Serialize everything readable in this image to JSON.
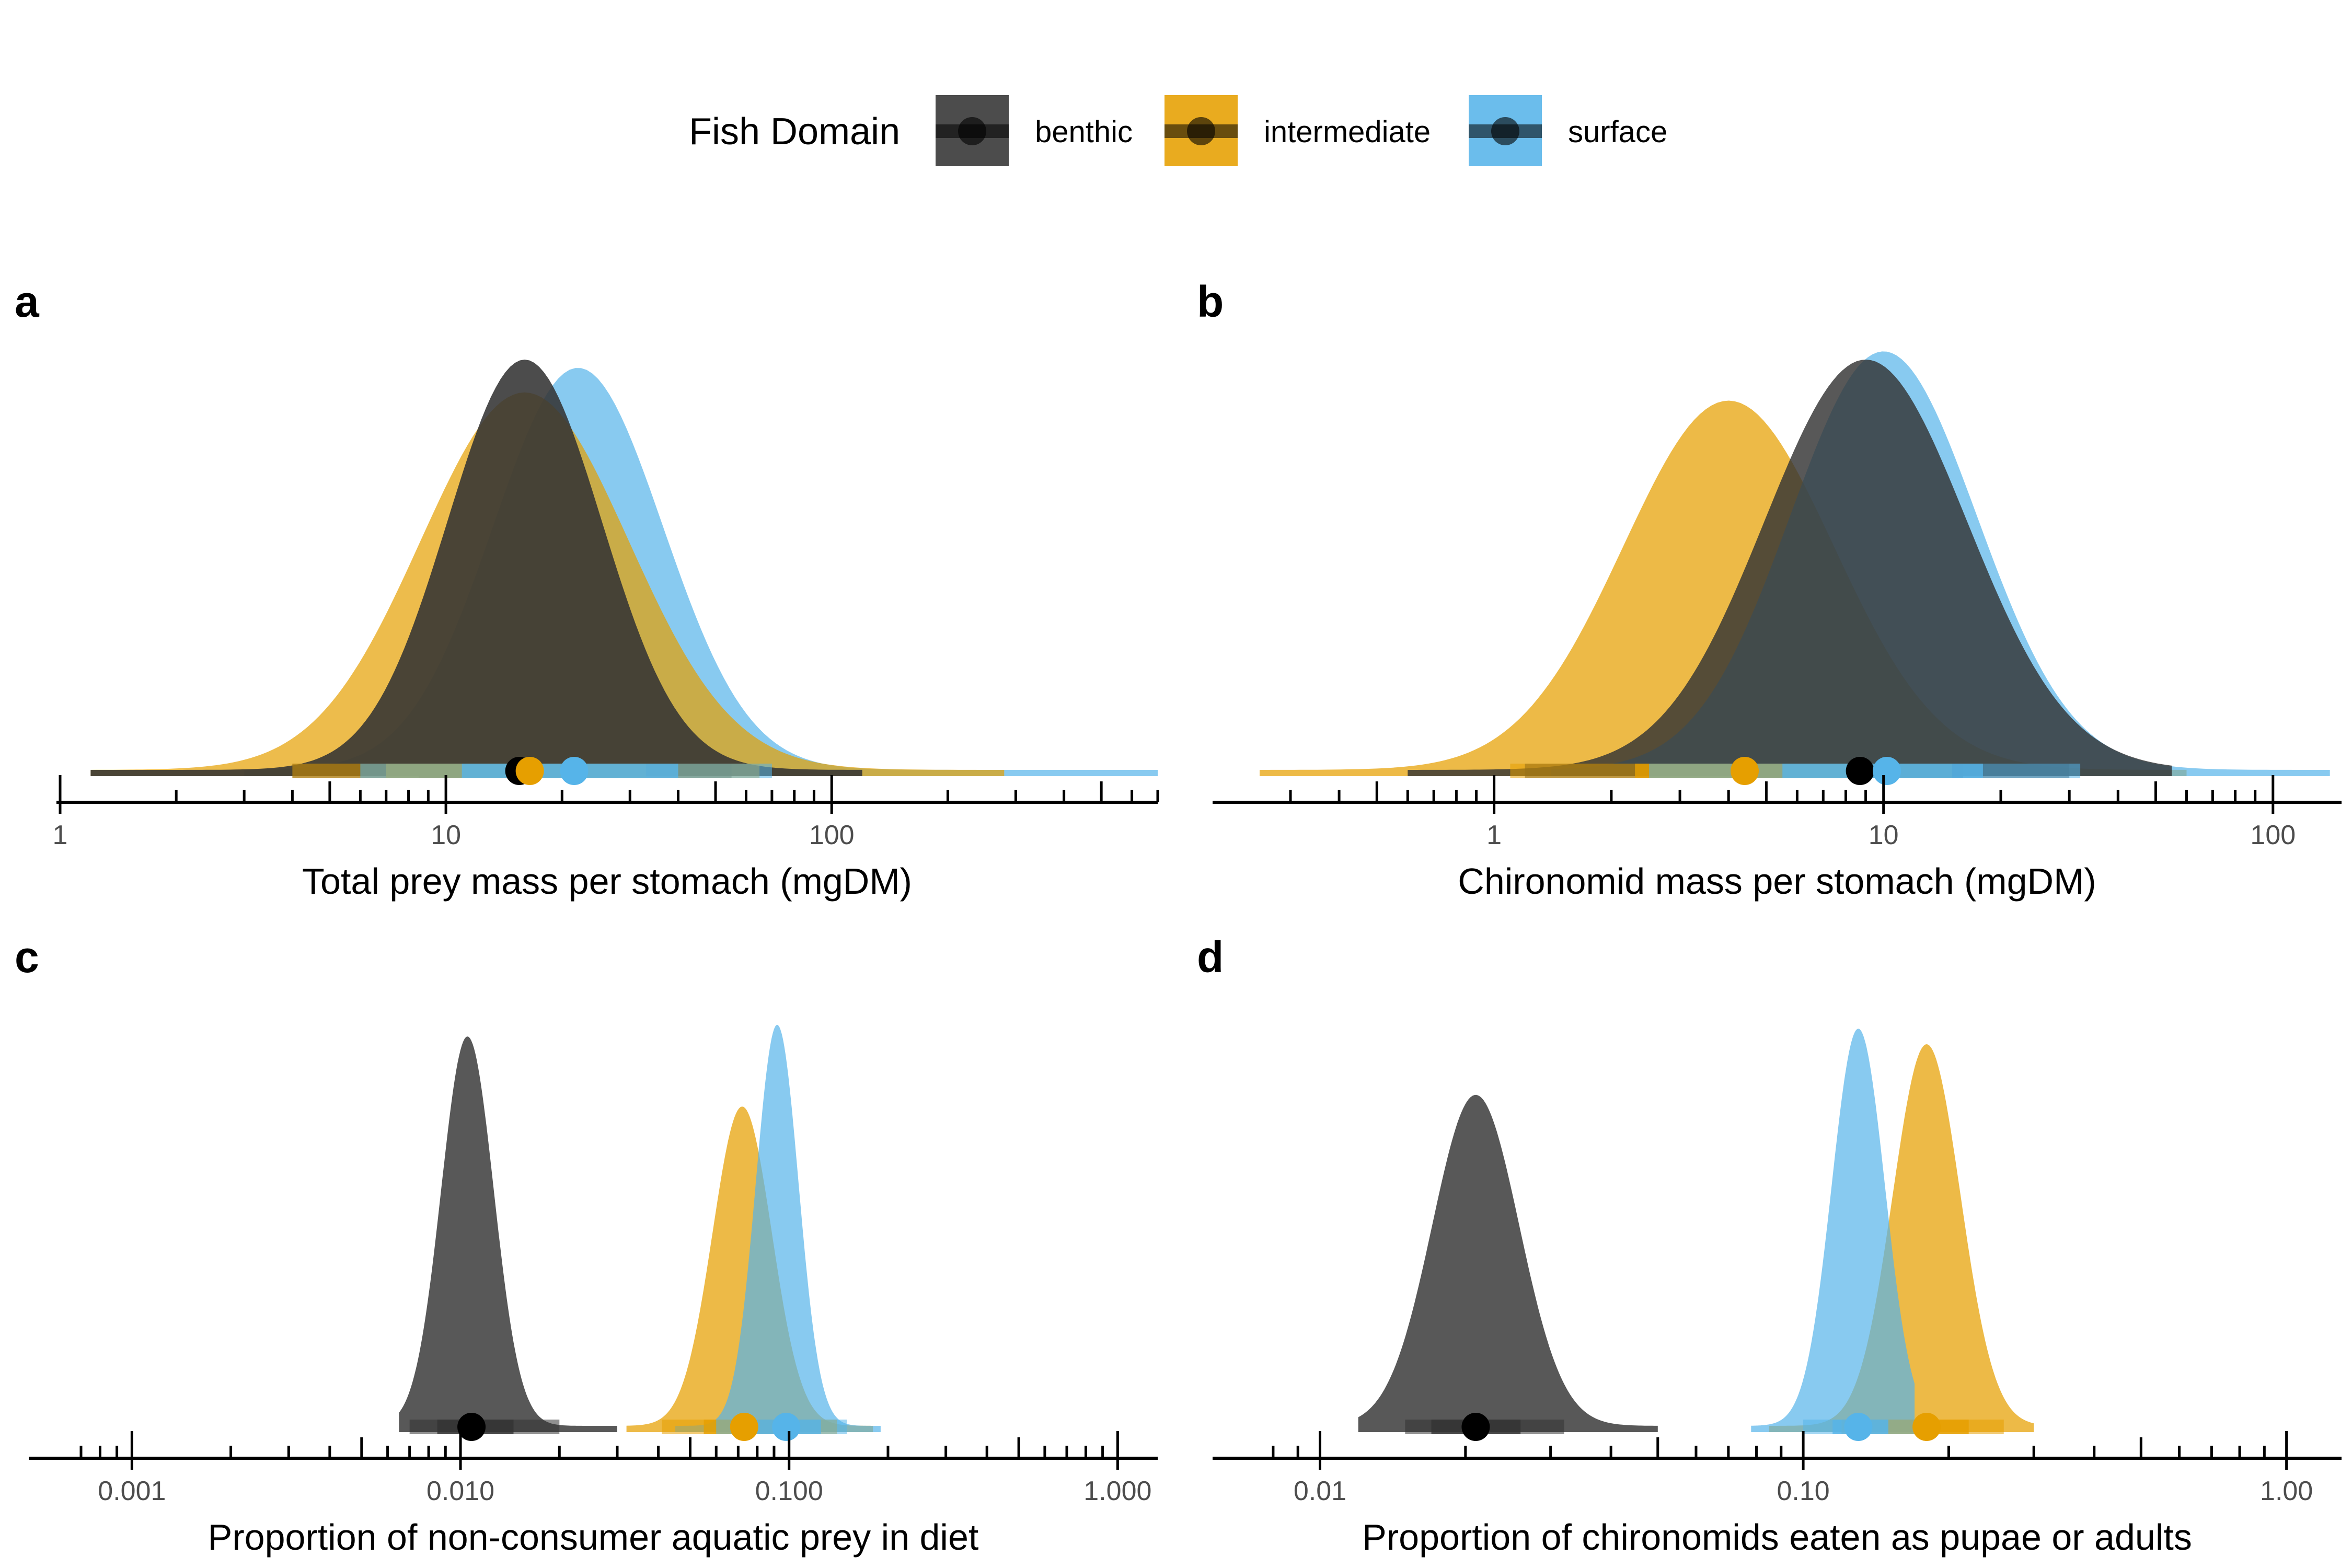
{
  "legend": {
    "title": "Fish Domain",
    "items": [
      {
        "label": "benthic",
        "color": "#333333"
      },
      {
        "label": "intermediate",
        "color": "#E69F00"
      },
      {
        "label": "surface",
        "color": "#56B4E9"
      }
    ]
  },
  "chart_data": [
    {
      "type": "area",
      "panel": "a",
      "xlabel": "Total prey mass per stomach (mgDM)",
      "xscale": "log10",
      "xlim": [
        1,
        700
      ],
      "major_ticks": [
        1,
        10,
        100
      ],
      "tick_labels": [
        "1",
        "10",
        "100"
      ],
      "series": [
        {
          "name": "benthic",
          "mode": 16,
          "median": 15.5,
          "ci66": [
            8.5,
            28
          ],
          "ci95": [
            4,
            55
          ],
          "density_range": [
            1.2,
            120
          ],
          "width": 0.2,
          "peak": 1.0
        },
        {
          "name": "intermediate",
          "mode": 16,
          "median": 16.5,
          "ci66": [
            7,
            33
          ],
          "ci95": [
            4,
            65
          ],
          "density_range": [
            1.2,
            280
          ],
          "width": 0.27,
          "peak": 0.92
        },
        {
          "name": "surface",
          "mode": 22,
          "median": 21.5,
          "ci66": [
            11,
            40
          ],
          "ci95": [
            6,
            70
          ],
          "density_range": [
            3,
            700
          ],
          "width": 0.22,
          "peak": 0.98
        }
      ]
    },
    {
      "type": "area",
      "panel": "b",
      "xlabel": "Chironomid mass per stomach (mgDM)",
      "xscale": "log10",
      "xlim": [
        0.25,
        150
      ],
      "major_ticks": [
        1,
        10,
        100
      ],
      "tick_labels": [
        "1",
        "10",
        "100"
      ],
      "series": [
        {
          "name": "benthic",
          "mode": 9,
          "median": 8.7,
          "ci66": [
            4.5,
            16
          ],
          "ci95": [
            1.2,
            30
          ],
          "density_range": [
            0.6,
            55
          ],
          "width": 0.26,
          "peak": 1.0
        },
        {
          "name": "intermediate",
          "mode": 4,
          "median": 4.4,
          "ci66": [
            2.3,
            8.5
          ],
          "ci95": [
            1.1,
            15
          ],
          "density_range": [
            0.25,
            60
          ],
          "width": 0.27,
          "peak": 0.9
        },
        {
          "name": "surface",
          "mode": 10,
          "median": 10.2,
          "ci66": [
            5.5,
            18
          ],
          "ci95": [
            2.5,
            32
          ],
          "density_range": [
            1.4,
            140
          ],
          "width": 0.24,
          "peak": 1.02
        }
      ]
    },
    {
      "type": "area",
      "panel": "c",
      "xlabel": "Proportion of non-consumer aquatic prey in diet",
      "xscale": "log10",
      "xlim": [
        0.0007,
        1.3
      ],
      "major_ticks": [
        0.001,
        0.01,
        0.1,
        1
      ],
      "tick_labels": [
        "0.001",
        "0.010",
        "0.100",
        "1.000"
      ],
      "series": [
        {
          "name": "benthic",
          "mode": 0.0105,
          "median": 0.0108,
          "ci66": [
            0.0085,
            0.0145
          ],
          "ci95": [
            0.007,
            0.02
          ],
          "density_range": [
            0.0065,
            0.03
          ],
          "width": 0.08,
          "peak": 1.0
        },
        {
          "name": "intermediate",
          "mode": 0.072,
          "median": 0.073,
          "ci66": [
            0.055,
            0.1
          ],
          "ci95": [
            0.041,
            0.14
          ],
          "density_range": [
            0.032,
            0.18
          ],
          "width": 0.09,
          "peak": 0.82
        },
        {
          "name": "surface",
          "mode": 0.092,
          "median": 0.098,
          "ci66": [
            0.075,
            0.125
          ],
          "ci95": [
            0.06,
            0.15
          ],
          "density_range": [
            0.045,
            0.19
          ],
          "width": 0.065,
          "peak": 1.03
        }
      ]
    },
    {
      "type": "area",
      "panel": "d",
      "xlabel": "Proportion of chironomids eaten as pupae or adults",
      "xscale": "log10",
      "xlim": [
        0.0075,
        1.3
      ],
      "major_ticks": [
        0.01,
        0.1,
        1
      ],
      "tick_labels": [
        "0.01",
        "0.10",
        "1.00"
      ],
      "series": [
        {
          "name": "benthic",
          "mode": 0.021,
          "median": 0.021,
          "ci66": [
            0.017,
            0.026
          ],
          "ci95": [
            0.015,
            0.032
          ],
          "density_range": [
            0.012,
            0.05
          ],
          "width": 0.09,
          "peak": 0.85
        },
        {
          "name": "intermediate",
          "mode": 0.18,
          "median": 0.18,
          "ci66": [
            0.15,
            0.22
          ],
          "ci95": [
            0.12,
            0.26
          ],
          "density_range": [
            0.085,
            0.3
          ],
          "width": 0.07,
          "peak": 0.98
        },
        {
          "name": "surface",
          "mode": 0.13,
          "median": 0.13,
          "ci66": [
            0.115,
            0.15
          ],
          "ci95": [
            0.1,
            0.17
          ],
          "density_range": [
            0.078,
            0.17
          ],
          "width": 0.055,
          "peak": 1.02
        }
      ]
    }
  ]
}
